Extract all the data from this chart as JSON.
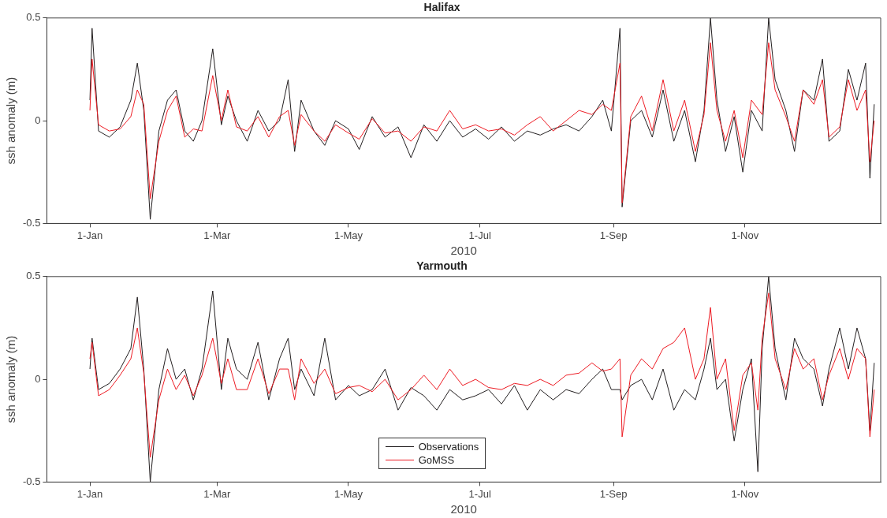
{
  "chart_data": [
    {
      "type": "line",
      "title": "Halifax",
      "xlabel": "2010",
      "ylabel": "ssh anomaly (m)",
      "xlim": [
        "2009-12-12",
        "2011-01-03"
      ],
      "ylim": [
        -0.5,
        0.5
      ],
      "yticks": [
        -0.5,
        0,
        0.5
      ],
      "xticks": [
        {
          "value": "2010-01-01",
          "label": "1-Jan"
        },
        {
          "value": "2010-03-01",
          "label": "1-Mar"
        },
        {
          "value": "2010-05-01",
          "label": "1-May"
        },
        {
          "value": "2010-07-01",
          "label": "1-Jul"
        },
        {
          "value": "2010-09-01",
          "label": "1-Sep"
        },
        {
          "value": "2010-11-01",
          "label": "1-Nov"
        }
      ],
      "grid": false,
      "legend": false,
      "marker": "none",
      "line_style": "solid",
      "x": [
        "2010-01-01",
        "2010-01-02",
        "2010-01-05",
        "2010-01-10",
        "2010-01-15",
        "2010-01-20",
        "2010-01-23",
        "2010-01-26",
        "2010-01-29",
        "2010-02-02",
        "2010-02-06",
        "2010-02-10",
        "2010-02-14",
        "2010-02-18",
        "2010-02-22",
        "2010-02-27",
        "2010-03-03",
        "2010-03-06",
        "2010-03-10",
        "2010-03-15",
        "2010-03-20",
        "2010-03-25",
        "2010-03-30",
        "2010-04-03",
        "2010-04-06",
        "2010-04-09",
        "2010-04-15",
        "2010-04-20",
        "2010-04-25",
        "2010-05-01",
        "2010-05-06",
        "2010-05-12",
        "2010-05-18",
        "2010-05-24",
        "2010-05-30",
        "2010-06-05",
        "2010-06-11",
        "2010-06-17",
        "2010-06-23",
        "2010-06-29",
        "2010-07-05",
        "2010-07-11",
        "2010-07-17",
        "2010-07-23",
        "2010-07-29",
        "2010-08-04",
        "2010-08-10",
        "2010-08-16",
        "2010-08-22",
        "2010-08-27",
        "2010-08-31",
        "2010-09-04",
        "2010-09-05",
        "2010-09-09",
        "2010-09-14",
        "2010-09-19",
        "2010-09-24",
        "2010-09-29",
        "2010-10-04",
        "2010-10-09",
        "2010-10-13",
        "2010-10-16",
        "2010-10-19",
        "2010-10-23",
        "2010-10-27",
        "2010-10-31",
        "2010-11-04",
        "2010-11-09",
        "2010-11-12",
        "2010-11-15",
        "2010-11-20",
        "2010-11-24",
        "2010-11-28",
        "2010-12-03",
        "2010-12-07",
        "2010-12-10",
        "2010-12-15",
        "2010-12-19",
        "2010-12-23",
        "2010-12-27",
        "2010-12-29",
        "2010-12-31"
      ],
      "series": [
        {
          "color": "#231f20",
          "values": [
            0.1,
            0.45,
            -0.05,
            -0.08,
            -0.03,
            0.1,
            0.28,
            0.05,
            -0.48,
            -0.05,
            0.1,
            0.15,
            -0.05,
            -0.1,
            0,
            0.35,
            -0.02,
            0.12,
            0,
            -0.1,
            0.05,
            -0.05,
            0,
            0.2,
            -0.15,
            0.1,
            -0.05,
            -0.12,
            0,
            -0.04,
            -0.14,
            0.02,
            -0.08,
            -0.03,
            -0.18,
            -0.02,
            -0.1,
            0,
            -0.08,
            -0.04,
            -0.09,
            -0.03,
            -0.1,
            -0.05,
            -0.07,
            -0.04,
            -0.02,
            -0.05,
            0.02,
            0.1,
            -0.05,
            0.45,
            -0.42,
            0,
            0.05,
            -0.08,
            0.15,
            -0.1,
            0.05,
            -0.2,
            0.05,
            0.5,
            0.1,
            -0.15,
            0.02,
            -0.25,
            0.05,
            -0.05,
            0.5,
            0.2,
            0.05,
            -0.15,
            0.15,
            0.1,
            0.3,
            -0.1,
            -0.05,
            0.25,
            0.1,
            0.28,
            -0.28,
            0.08
          ]
        },
        {
          "color": "#ed1c24",
          "values": [
            0.05,
            0.3,
            -0.02,
            -0.05,
            -0.04,
            0.02,
            0.15,
            0.08,
            -0.38,
            -0.1,
            0.05,
            0.12,
            -0.08,
            -0.04,
            -0.05,
            0.22,
            0,
            0.15,
            -0.03,
            -0.05,
            0.02,
            -0.08,
            0.02,
            0.05,
            -0.12,
            0.03,
            -0.05,
            -0.1,
            -0.02,
            -0.06,
            -0.09,
            0.01,
            -0.06,
            -0.05,
            -0.1,
            -0.03,
            -0.05,
            0.05,
            -0.04,
            -0.02,
            -0.05,
            -0.04,
            -0.07,
            -0.02,
            0.02,
            -0.05,
            0,
            0.05,
            0.03,
            0.08,
            0.05,
            0.28,
            -0.4,
            0.02,
            0.12,
            -0.05,
            0.2,
            -0.05,
            0.1,
            -0.15,
            0.03,
            0.38,
            0.05,
            -0.1,
            0.05,
            -0.18,
            0.1,
            0.03,
            0.38,
            0.15,
            0.02,
            -0.1,
            0.15,
            0.08,
            0.2,
            -0.08,
            -0.03,
            0.2,
            0.05,
            0.15,
            -0.2,
            0
          ]
        }
      ]
    },
    {
      "type": "line",
      "title": "Yarmouth",
      "xlabel": "2010",
      "ylabel": "ssh anomaly (m)",
      "xlim": [
        "2009-12-12",
        "2011-01-03"
      ],
      "ylim": [
        -0.5,
        0.5
      ],
      "yticks": [
        -0.5,
        0,
        0.5
      ],
      "xticks": [
        {
          "value": "2010-01-01",
          "label": "1-Jan"
        },
        {
          "value": "2010-03-01",
          "label": "1-Mar"
        },
        {
          "value": "2010-05-01",
          "label": "1-May"
        },
        {
          "value": "2010-07-01",
          "label": "1-Jul"
        },
        {
          "value": "2010-09-01",
          "label": "1-Sep"
        },
        {
          "value": "2010-11-01",
          "label": "1-Nov"
        }
      ],
      "grid": false,
      "legend": "bottom",
      "marker": "none",
      "line_style": "solid",
      "x": [
        "2010-01-01",
        "2010-01-02",
        "2010-01-05",
        "2010-01-10",
        "2010-01-15",
        "2010-01-20",
        "2010-01-23",
        "2010-01-26",
        "2010-01-29",
        "2010-02-02",
        "2010-02-06",
        "2010-02-10",
        "2010-02-14",
        "2010-02-18",
        "2010-02-22",
        "2010-02-27",
        "2010-03-03",
        "2010-03-06",
        "2010-03-10",
        "2010-03-15",
        "2010-03-20",
        "2010-03-25",
        "2010-03-30",
        "2010-04-03",
        "2010-04-06",
        "2010-04-09",
        "2010-04-15",
        "2010-04-20",
        "2010-04-25",
        "2010-05-01",
        "2010-05-06",
        "2010-05-12",
        "2010-05-18",
        "2010-05-24",
        "2010-05-30",
        "2010-06-05",
        "2010-06-11",
        "2010-06-17",
        "2010-06-23",
        "2010-06-29",
        "2010-07-05",
        "2010-07-11",
        "2010-07-17",
        "2010-07-23",
        "2010-07-29",
        "2010-08-04",
        "2010-08-10",
        "2010-08-16",
        "2010-08-22",
        "2010-08-27",
        "2010-08-31",
        "2010-09-04",
        "2010-09-05",
        "2010-09-09",
        "2010-09-14",
        "2010-09-19",
        "2010-09-24",
        "2010-09-29",
        "2010-10-04",
        "2010-10-09",
        "2010-10-13",
        "2010-10-16",
        "2010-10-19",
        "2010-10-23",
        "2010-10-27",
        "2010-10-31",
        "2010-11-04",
        "2010-11-07",
        "2010-11-09",
        "2010-11-12",
        "2010-11-15",
        "2010-11-20",
        "2010-11-24",
        "2010-11-28",
        "2010-12-03",
        "2010-12-07",
        "2010-12-10",
        "2010-12-15",
        "2010-12-19",
        "2010-12-23",
        "2010-12-27",
        "2010-12-29",
        "2010-12-31"
      ],
      "series": [
        {
          "name": "Observations",
          "color": "#231f20",
          "values": [
            0.05,
            0.2,
            -0.05,
            -0.02,
            0.05,
            0.15,
            0.4,
            0.05,
            -0.5,
            -0.05,
            0.15,
            0,
            0.05,
            -0.1,
            0.05,
            0.43,
            -0.05,
            0.2,
            0.05,
            0,
            0.18,
            -0.1,
            0.1,
            0.2,
            -0.05,
            0.05,
            -0.08,
            0.2,
            -0.1,
            -0.03,
            -0.08,
            -0.05,
            0.05,
            -0.15,
            -0.04,
            -0.08,
            -0.15,
            -0.05,
            -0.1,
            -0.08,
            -0.05,
            -0.12,
            -0.03,
            -0.15,
            -0.05,
            -0.1,
            -0.05,
            -0.07,
            0,
            0.05,
            -0.05,
            -0.05,
            -0.1,
            -0.03,
            0,
            -0.1,
            0.05,
            -0.15,
            -0.05,
            -0.1,
            0.05,
            0.2,
            -0.05,
            0,
            -0.3,
            -0.05,
            0.1,
            -0.45,
            0.15,
            0.5,
            0.15,
            -0.1,
            0.2,
            0.1,
            0.05,
            -0.13,
            0.05,
            0.25,
            0.05,
            0.25,
            0.1,
            -0.25,
            0.08
          ]
        },
        {
          "name": "GoMSS",
          "color": "#ed1c24",
          "values": [
            0.1,
            0.18,
            -0.08,
            -0.05,
            0.02,
            0.1,
            0.25,
            0.03,
            -0.38,
            -0.1,
            0.05,
            -0.05,
            0.02,
            -0.08,
            0.02,
            0.2,
            -0.02,
            0.1,
            -0.05,
            -0.05,
            0.1,
            -0.07,
            0.05,
            0.05,
            -0.1,
            0.1,
            -0.02,
            0.05,
            -0.07,
            -0.04,
            -0.03,
            -0.06,
            0,
            -0.1,
            -0.05,
            0.02,
            -0.05,
            0.05,
            -0.03,
            0,
            -0.04,
            -0.05,
            -0.02,
            -0.03,
            0,
            -0.03,
            0.02,
            0.03,
            0.08,
            0.04,
            0.05,
            0.1,
            -0.28,
            0.02,
            0.1,
            0.05,
            0.15,
            0.18,
            0.25,
            0,
            0.1,
            0.35,
            0,
            0.1,
            -0.25,
            0.02,
            0.08,
            -0.15,
            0.2,
            0.42,
            0.1,
            -0.05,
            0.15,
            0.05,
            0.1,
            -0.1,
            0.02,
            0.15,
            0,
            0.15,
            0.1,
            -0.28,
            -0.05
          ]
        }
      ]
    }
  ]
}
